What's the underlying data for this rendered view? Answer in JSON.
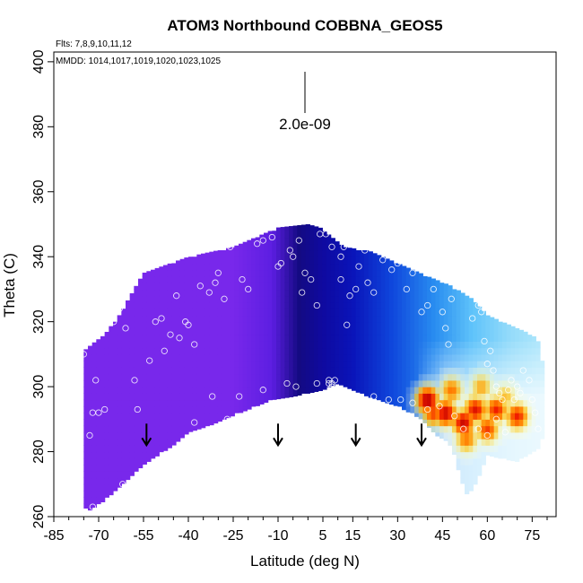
{
  "chart_data": {
    "type": "heatmap",
    "title": "ATOM3 Northbound COBBNA_GEOS5",
    "flights_label": "Flts: 7,8,9,10,11,12",
    "dates_label": "MMDD: 1014,1017,1019,1020,1023,1025",
    "xlabel": "Latitude (deg N)",
    "ylabel": "Theta (C)",
    "xlim": [
      -85,
      83
    ],
    "ylim": [
      260,
      403
    ],
    "x_ticks": [
      -85,
      -70,
      -55,
      -40,
      -25,
      -10,
      5,
      15,
      30,
      45,
      60,
      75
    ],
    "y_ticks": [
      260,
      280,
      300,
      320,
      340,
      360,
      380,
      400
    ],
    "scale_label": "2.0e-09",
    "arrows_lat": [
      -54,
      -10,
      16,
      38
    ],
    "arrow_base_theta": 282,
    "curtain_top": [
      [
        -75,
        311
      ],
      [
        -71,
        314
      ],
      [
        -68,
        316
      ],
      [
        -64,
        321
      ],
      [
        -60,
        327
      ],
      [
        -55,
        335
      ],
      [
        -40,
        340
      ],
      [
        -25,
        343
      ],
      [
        -15,
        347
      ],
      [
        -10,
        349
      ],
      [
        0,
        350
      ],
      [
        4,
        349
      ],
      [
        8,
        346
      ],
      [
        12,
        343
      ],
      [
        20,
        342
      ],
      [
        30,
        338
      ],
      [
        40,
        334
      ],
      [
        48,
        331
      ],
      [
        55,
        327
      ],
      [
        60,
        322
      ],
      [
        65,
        320
      ],
      [
        70,
        318
      ],
      [
        75,
        316
      ],
      [
        77,
        314
      ],
      [
        79,
        305
      ]
    ],
    "curtain_bottom": [
      [
        79,
        285
      ],
      [
        77,
        281
      ],
      [
        70,
        277
      ],
      [
        64,
        278
      ],
      [
        60,
        279
      ],
      [
        57,
        272
      ],
      [
        55,
        268
      ],
      [
        53,
        267
      ],
      [
        51,
        272
      ],
      [
        49,
        279
      ],
      [
        47,
        283
      ],
      [
        43,
        285
      ],
      [
        38,
        290
      ],
      [
        30,
        294
      ],
      [
        20,
        297
      ],
      [
        10,
        301
      ],
      [
        5,
        299
      ],
      [
        -5,
        297
      ],
      [
        -12,
        296
      ],
      [
        -20,
        293
      ],
      [
        -28,
        290
      ],
      [
        -33,
        288
      ],
      [
        -40,
        286
      ],
      [
        -45,
        282
      ],
      [
        -55,
        276
      ],
      [
        -62,
        270
      ],
      [
        -68,
        265
      ],
      [
        -73,
        262
      ],
      [
        -75,
        263
      ]
    ],
    "hot_spots": [
      {
        "lat": 40,
        "theta": 296,
        "value": 1.0
      },
      {
        "lat": 46,
        "theta": 292,
        "value": 0.95
      },
      {
        "lat": 52,
        "theta": 289,
        "value": 0.95
      },
      {
        "lat": 56,
        "theta": 293,
        "value": 0.9
      },
      {
        "lat": 63,
        "theta": 293,
        "value": 0.85
      },
      {
        "lat": 70,
        "theta": 291,
        "value": 0.85
      },
      {
        "lat": 48,
        "theta": 299,
        "value": 0.7
      },
      {
        "lat": 58,
        "theta": 300,
        "value": 0.6
      },
      {
        "lat": 60,
        "theta": 287,
        "value": 0.8
      },
      {
        "lat": 53,
        "theta": 284,
        "value": 0.7
      },
      {
        "lat": 66,
        "theta": 297,
        "value": 0.55
      },
      {
        "lat": 42,
        "theta": 292,
        "value": 0.8
      }
    ],
    "points": [
      [
        -75,
        310
      ],
      [
        -73,
        285
      ],
      [
        -72,
        292
      ],
      [
        -70,
        292
      ],
      [
        -68,
        293
      ],
      [
        -71,
        302
      ],
      [
        -65,
        320
      ],
      [
        -63,
        324
      ],
      [
        -61,
        318
      ],
      [
        -58,
        302
      ],
      [
        -57,
        293
      ],
      [
        -53,
        308
      ],
      [
        -51,
        320
      ],
      [
        -49,
        321
      ],
      [
        -48,
        311
      ],
      [
        -46,
        316
      ],
      [
        -44,
        328
      ],
      [
        -43,
        315
      ],
      [
        -41,
        320
      ],
      [
        -40,
        319
      ],
      [
        -38,
        313
      ],
      [
        -36,
        331
      ],
      [
        -33,
        329
      ],
      [
        -31,
        332
      ],
      [
        -30,
        335
      ],
      [
        -28,
        327
      ],
      [
        -26,
        343
      ],
      [
        -22,
        333
      ],
      [
        -20,
        330
      ],
      [
        -17,
        344
      ],
      [
        -15,
        345
      ],
      [
        -12,
        346
      ],
      [
        -10,
        337
      ],
      [
        -9,
        338
      ],
      [
        -6,
        342
      ],
      [
        -5,
        340
      ],
      [
        -3,
        345
      ],
      [
        -2,
        329
      ],
      [
        -1,
        335
      ],
      [
        1,
        333
      ],
      [
        3,
        325
      ],
      [
        4,
        347
      ],
      [
        6,
        347
      ],
      [
        8,
        343
      ],
      [
        11,
        333
      ],
      [
        11,
        340
      ],
      [
        12,
        343
      ],
      [
        13,
        319
      ],
      [
        14,
        328
      ],
      [
        16,
        330
      ],
      [
        17,
        337
      ],
      [
        19,
        342
      ],
      [
        20,
        332
      ],
      [
        22,
        329
      ],
      [
        25,
        339
      ],
      [
        28,
        336
      ],
      [
        30,
        338
      ],
      [
        33,
        330
      ],
      [
        35,
        335
      ],
      [
        38,
        323
      ],
      [
        40,
        325
      ],
      [
        42,
        330
      ],
      [
        44,
        334
      ],
      [
        45,
        323
      ],
      [
        46,
        318
      ],
      [
        47,
        313
      ],
      [
        48,
        327
      ],
      [
        50,
        331
      ],
      [
        52,
        336
      ],
      [
        55,
        321
      ],
      [
        57,
        325
      ],
      [
        58,
        323
      ],
      [
        59,
        314
      ],
      [
        60,
        307
      ],
      [
        61,
        311
      ],
      [
        62,
        305
      ],
      [
        63,
        300
      ],
      [
        64,
        298
      ],
      [
        65,
        296
      ],
      [
        67,
        299
      ],
      [
        68,
        302
      ],
      [
        69,
        296
      ],
      [
        70,
        300
      ],
      [
        71,
        298
      ],
      [
        72,
        305
      ],
      [
        74,
        302
      ],
      [
        75,
        296
      ],
      [
        76,
        292
      ],
      [
        77,
        287
      ],
      [
        -32,
        297
      ],
      [
        -27,
        290
      ],
      [
        -23,
        297
      ],
      [
        -15,
        299
      ],
      [
        -7,
        301
      ],
      [
        -4,
        300
      ],
      [
        3,
        301
      ],
      [
        7,
        301
      ],
      [
        7,
        302
      ],
      [
        8,
        300
      ],
      [
        8,
        301
      ],
      [
        9,
        302
      ],
      [
        14,
        297
      ],
      [
        18,
        296
      ],
      [
        22,
        297
      ],
      [
        27,
        296
      ],
      [
        31,
        296
      ],
      [
        35,
        295
      ],
      [
        40,
        293
      ],
      [
        44,
        294
      ],
      [
        49,
        291
      ],
      [
        52,
        287
      ],
      [
        57,
        287
      ],
      [
        60,
        285
      ],
      [
        63,
        290
      ],
      [
        66,
        286
      ],
      [
        -72,
        263
      ],
      [
        -62,
        270
      ],
      [
        -45,
        280
      ],
      [
        -38,
        289
      ]
    ]
  }
}
